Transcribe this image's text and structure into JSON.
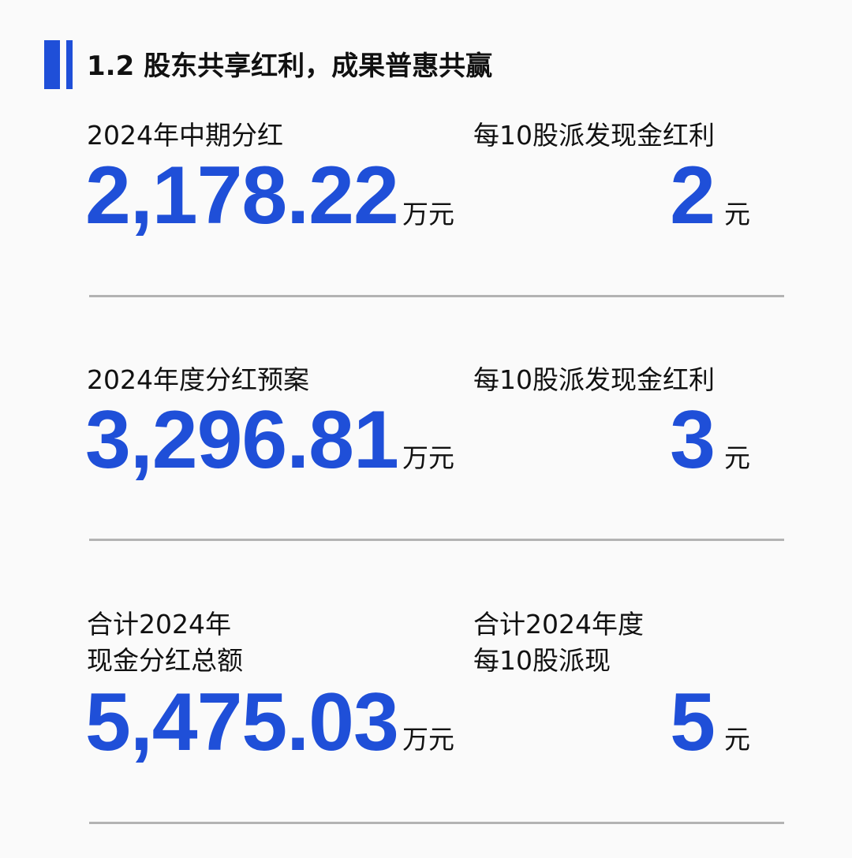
{
  "section_title": "1.2 股东共享红利，成果普惠共赢",
  "accent_color": "#1f4fd8",
  "rows": [
    {
      "left_label": [
        "2024年中期分红"
      ],
      "left_value": "2,178.22",
      "left_unit": "万元",
      "right_label": [
        "每10股派发现金红利"
      ],
      "right_value": "2",
      "right_unit": "元"
    },
    {
      "left_label": [
        "2024年度分红预案"
      ],
      "left_value": "3,296.81",
      "left_unit": "万元",
      "right_label": [
        "每10股派发现金红利"
      ],
      "right_value": "3",
      "right_unit": "元"
    },
    {
      "left_label": [
        "合计2024年",
        "现金分红总额"
      ],
      "left_value": "5,475.03",
      "left_unit": "万元",
      "right_label": [
        "合计2024年度",
        "每10股派现"
      ],
      "right_value": "5",
      "right_unit": "元"
    }
  ]
}
